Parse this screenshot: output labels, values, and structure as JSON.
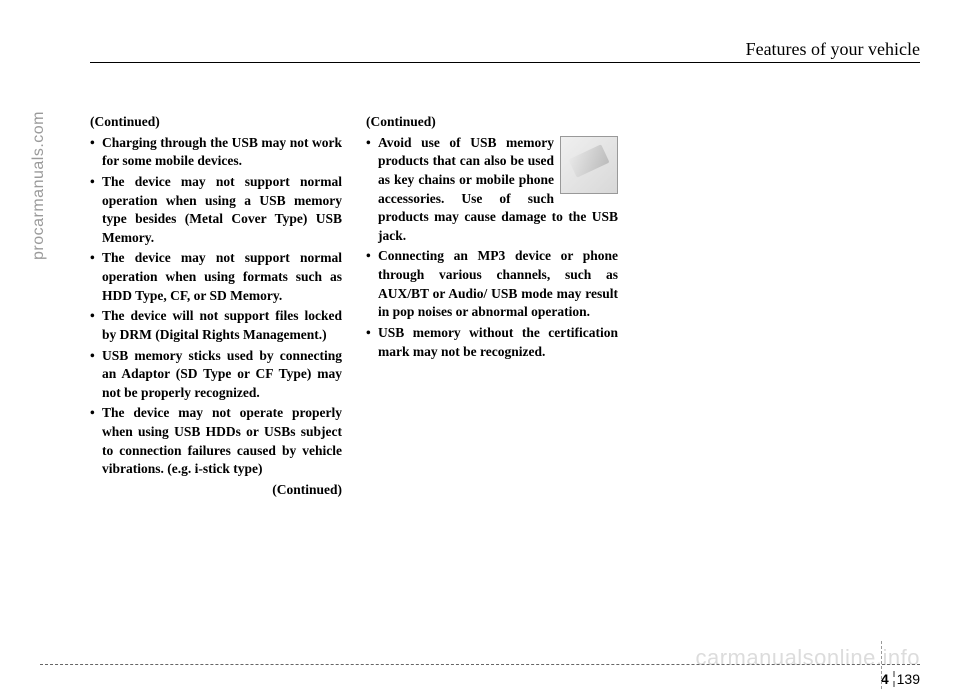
{
  "header": {
    "section_title": "Features of your vehicle"
  },
  "col1": {
    "continued": "(Continued)",
    "bullets": [
      "Charging through the USB may not work for some mobile devices.",
      "The device may not support normal operation when using a USB memory type besides (Metal Cover Type) USB Memory.",
      "The device may not support normal operation when using formats such as HDD Type, CF, or SD Memory.",
      "The device will not support files locked by DRM (Digital Rights Management.)",
      "USB memory sticks used by connecting an Adaptor (SD Type or CF Type) may not be properly recognized.",
      "The device may not operate properly when using USB HDDs or USBs subject to connection failures caused by vehicle vibrations. (e.g. i-stick type)"
    ],
    "continued_end": "(Continued)"
  },
  "col2": {
    "continued": "(Continued)",
    "bullets": [
      "Avoid use of USB memory products that can also be used as key chains or mobile phone accessories. Use of such products may cause damage to the USB jack.",
      "Connecting an MP3 device or phone through various channels, such as AUX/BT or Audio/ USB mode may result in pop noises or abnormal operation.",
      "USB memory without the certification mark may not be recognized."
    ]
  },
  "side_text": "procarmanuals.com",
  "page_number": {
    "section": "4",
    "page": "139"
  },
  "watermark": "carmanualsonline.info"
}
